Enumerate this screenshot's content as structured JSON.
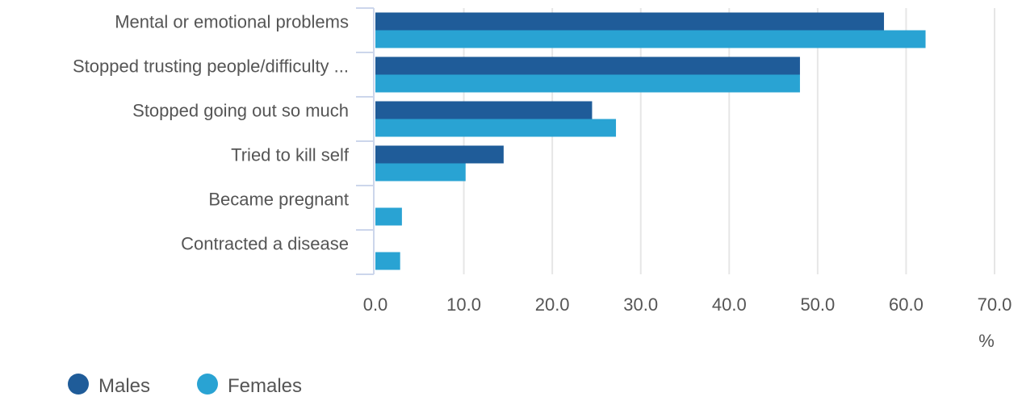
{
  "chart_data": {
    "type": "bar",
    "orientation": "horizontal",
    "categories": [
      "Mental or emotional problems",
      "Stopped trusting people/difficulty ...",
      "Stopped going out so much",
      "Tried to kill self",
      "Became pregnant",
      "Contracted a disease"
    ],
    "series": [
      {
        "name": "Males",
        "color": "#1f5c99",
        "values": [
          57.5,
          48.0,
          24.5,
          14.5,
          null,
          null
        ]
      },
      {
        "name": "Females",
        "color": "#29a3d3",
        "values": [
          62.2,
          48.0,
          27.2,
          10.2,
          3.0,
          2.8
        ]
      }
    ],
    "xlim": [
      0,
      70
    ],
    "xticks": [
      "0.0",
      "10.0",
      "20.0",
      "30.0",
      "40.0",
      "50.0",
      "60.0",
      "70.0"
    ],
    "xunit": "%",
    "grid": true,
    "legend_position": "bottom-left"
  }
}
